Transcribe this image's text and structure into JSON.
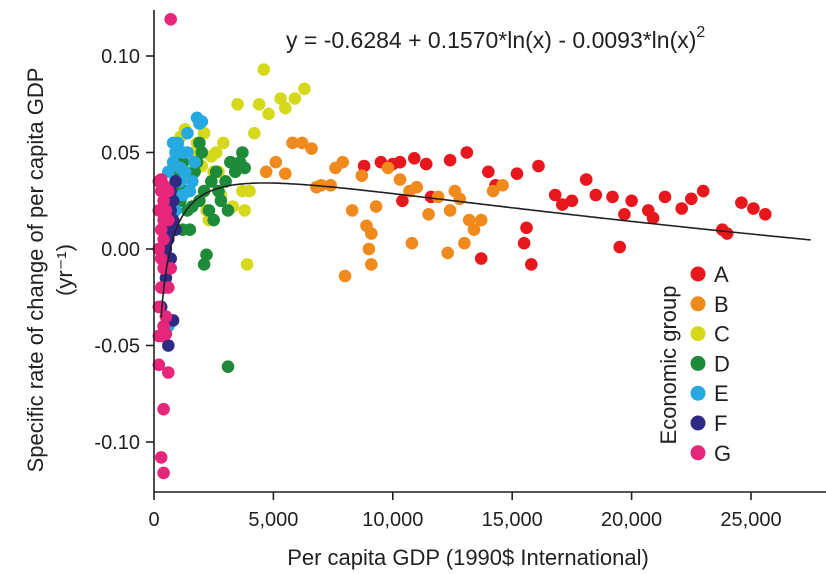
{
  "chart_data": {
    "type": "scatter",
    "xlabel": "Per capita GDP (1990$ International)",
    "ylabel_line1": "Specific rate of change of per capita GDP",
    "ylabel_line2": "(yr⁻¹)",
    "equation": "y = -0.6284 + 0.1570*ln(x) - 0.0093*ln(x)",
    "equation_sup": "2",
    "xlim": [
      0,
      27500
    ],
    "ylim": [
      -0.13,
      0.125
    ],
    "x_ticks": [
      0,
      5000,
      10000,
      15000,
      20000,
      25000
    ],
    "x_tick_labels": [
      "0",
      "5,000",
      "10,000",
      "15,000",
      "20,000",
      "25,000"
    ],
    "y_ticks": [
      0.1,
      0.05,
      0.0,
      -0.05,
      -0.1
    ],
    "y_tick_labels": [
      "0.10",
      "0.05",
      "0.00",
      "-0.05",
      "-0.10"
    ],
    "fit": {
      "a": -0.6284,
      "b": 0.157,
      "c": -0.0093
    },
    "legend_title": "Economic group",
    "series": [
      {
        "name": "A",
        "color": "#e8171d",
        "points": [
          [
            8800,
            0.043
          ],
          [
            9500,
            0.045
          ],
          [
            10000,
            0.044
          ],
          [
            10300,
            0.045
          ],
          [
            10900,
            0.047
          ],
          [
            11400,
            0.044
          ],
          [
            12400,
            0.046
          ],
          [
            13100,
            0.05
          ],
          [
            14000,
            0.04
          ],
          [
            15200,
            0.039
          ],
          [
            16100,
            0.043
          ],
          [
            16800,
            0.028
          ],
          [
            17500,
            0.025
          ],
          [
            18100,
            0.036
          ],
          [
            18500,
            0.028
          ],
          [
            19200,
            0.027
          ],
          [
            19700,
            0.018
          ],
          [
            20000,
            0.025
          ],
          [
            20700,
            0.02
          ],
          [
            21400,
            0.027
          ],
          [
            22100,
            0.021
          ],
          [
            22500,
            0.026
          ],
          [
            23000,
            0.03
          ],
          [
            23800,
            0.01
          ],
          [
            24600,
            0.024
          ],
          [
            25100,
            0.021
          ],
          [
            25600,
            0.018
          ],
          [
            15600,
            0.011
          ],
          [
            15800,
            -0.008
          ],
          [
            15500,
            0.003
          ],
          [
            13700,
            -0.005
          ],
          [
            19500,
            0.001
          ],
          [
            10400,
            0.025
          ],
          [
            11600,
            0.027
          ],
          [
            24000,
            0.008
          ],
          [
            17100,
            0.023
          ],
          [
            14300,
            0.033
          ],
          [
            20900,
            0.016
          ]
        ]
      },
      {
        "name": "B",
        "color": "#f08a1d",
        "points": [
          [
            4700,
            0.04
          ],
          [
            5100,
            0.045
          ],
          [
            5500,
            0.039
          ],
          [
            5800,
            0.055
          ],
          [
            6200,
            0.055
          ],
          [
            6600,
            0.052
          ],
          [
            7000,
            0.033
          ],
          [
            7400,
            0.033
          ],
          [
            7900,
            0.045
          ],
          [
            8300,
            0.02
          ],
          [
            8700,
            0.038
          ],
          [
            8900,
            0.012
          ],
          [
            9100,
            0.008
          ],
          [
            9100,
            -0.008
          ],
          [
            9300,
            0.022
          ],
          [
            9800,
            0.042
          ],
          [
            10300,
            0.036
          ],
          [
            10700,
            0.03
          ],
          [
            11000,
            0.032
          ],
          [
            11500,
            0.018
          ],
          [
            11900,
            0.027
          ],
          [
            12400,
            0.02
          ],
          [
            12600,
            0.03
          ],
          [
            12800,
            0.026
          ],
          [
            13200,
            0.015
          ],
          [
            13400,
            0.01
          ],
          [
            13000,
            0.003
          ],
          [
            12300,
            -0.002
          ],
          [
            13700,
            0.015
          ],
          [
            14200,
            0.03
          ],
          [
            14600,
            0.033
          ],
          [
            8000,
            -0.014
          ],
          [
            9000,
            0.0
          ],
          [
            10800,
            0.003
          ],
          [
            6800,
            0.032
          ],
          [
            7600,
            0.042
          ]
        ]
      },
      {
        "name": "C",
        "color": "#d6d81c",
        "points": [
          [
            800,
            0.03
          ],
          [
            1000,
            0.035
          ],
          [
            1200,
            0.04
          ],
          [
            1400,
            0.045
          ],
          [
            1500,
            0.038
          ],
          [
            1700,
            0.05
          ],
          [
            1800,
            0.055
          ],
          [
            2000,
            0.043
          ],
          [
            2100,
            0.03
          ],
          [
            2200,
            0.02
          ],
          [
            2300,
            0.015
          ],
          [
            2400,
            0.048
          ],
          [
            2500,
            0.04
          ],
          [
            2600,
            0.05
          ],
          [
            2800,
            0.028
          ],
          [
            2900,
            0.055
          ],
          [
            3000,
            0.035
          ],
          [
            3200,
            0.045
          ],
          [
            3300,
            0.022
          ],
          [
            3500,
            0.075
          ],
          [
            3700,
            0.03
          ],
          [
            3800,
            0.02
          ],
          [
            4000,
            0.03
          ],
          [
            4200,
            0.06
          ],
          [
            4400,
            0.075
          ],
          [
            4800,
            0.07
          ],
          [
            5300,
            0.078
          ],
          [
            5500,
            0.073
          ],
          [
            5900,
            0.078
          ],
          [
            6300,
            0.083
          ],
          [
            4600,
            0.093
          ],
          [
            3900,
            -0.008
          ],
          [
            1100,
            0.058
          ],
          [
            1300,
            0.062
          ],
          [
            2100,
            0.06
          ],
          [
            2700,
            0.04
          ]
        ]
      },
      {
        "name": "D",
        "color": "#1e8b3a",
        "points": [
          [
            900,
            0.03
          ],
          [
            1000,
            0.04
          ],
          [
            1100,
            0.025
          ],
          [
            1200,
            0.045
          ],
          [
            1300,
            0.03
          ],
          [
            1400,
            0.02
          ],
          [
            1500,
            0.01
          ],
          [
            1600,
            0.035
          ],
          [
            1700,
            0.04
          ],
          [
            1800,
            0.045
          ],
          [
            1900,
            0.025
          ],
          [
            2000,
            0.05
          ],
          [
            2100,
            0.03
          ],
          [
            2200,
            -0.003
          ],
          [
            2300,
            0.02
          ],
          [
            2400,
            0.035
          ],
          [
            2600,
            0.04
          ],
          [
            2700,
            0.03
          ],
          [
            2800,
            0.025
          ],
          [
            3000,
            0.035
          ],
          [
            3100,
            0.02
          ],
          [
            3200,
            0.045
          ],
          [
            3400,
            0.04
          ],
          [
            3600,
            0.045
          ],
          [
            3700,
            0.05
          ],
          [
            3800,
            0.042
          ],
          [
            2100,
            -0.008
          ],
          [
            3100,
            -0.061
          ],
          [
            1200,
            0.01
          ],
          [
            1900,
            0.055
          ],
          [
            2500,
            0.015
          ],
          [
            1600,
            0.022
          ]
        ]
      },
      {
        "name": "E",
        "color": "#25a9e0",
        "points": [
          [
            500,
            0.025
          ],
          [
            600,
            0.04
          ],
          [
            700,
            0.03
          ],
          [
            800,
            0.045
          ],
          [
            900,
            0.05
          ],
          [
            1000,
            0.055
          ],
          [
            1100,
            0.035
          ],
          [
            1200,
            0.028
          ],
          [
            1300,
            0.04
          ],
          [
            1400,
            0.05
          ],
          [
            1500,
            0.03
          ],
          [
            1600,
            0.035
          ],
          [
            1700,
            0.045
          ],
          [
            1800,
            0.068
          ],
          [
            1900,
            0.065
          ],
          [
            2000,
            0.066
          ],
          [
            700,
            0.01
          ],
          [
            900,
            0.02
          ],
          [
            1100,
            0.042
          ],
          [
            1400,
            0.06
          ],
          [
            600,
            -0.04
          ],
          [
            800,
            0.055
          ],
          [
            1200,
            0.05
          ]
        ]
      },
      {
        "name": "F",
        "color": "#2f2b85",
        "points": [
          [
            300,
            -0.03
          ],
          [
            400,
            -0.02
          ],
          [
            500,
            0.0
          ],
          [
            600,
            0.01
          ],
          [
            700,
            0.02
          ],
          [
            800,
            0.025
          ],
          [
            600,
            -0.05
          ],
          [
            700,
            0.03
          ],
          [
            500,
            0.03
          ],
          [
            800,
            0.015
          ],
          [
            900,
            0.035
          ],
          [
            700,
            -0.005
          ],
          [
            600,
            0.005
          ],
          [
            800,
            -0.037
          ],
          [
            500,
            -0.015
          ],
          [
            900,
            0.01
          ]
        ]
      },
      {
        "name": "G",
        "color": "#e5267a",
        "points": [
          [
            700,
            0.119
          ],
          [
            200,
            0.035
          ],
          [
            300,
            0.03
          ],
          [
            400,
            0.025
          ],
          [
            200,
            0.02
          ],
          [
            300,
            0.01
          ],
          [
            400,
            0.005
          ],
          [
            200,
            0.0
          ],
          [
            300,
            -0.005
          ],
          [
            400,
            -0.01
          ],
          [
            300,
            -0.02
          ],
          [
            200,
            -0.03
          ],
          [
            400,
            -0.04
          ],
          [
            300,
            -0.045
          ],
          [
            200,
            -0.06
          ],
          [
            500,
            -0.044
          ],
          [
            600,
            -0.064
          ],
          [
            400,
            -0.083
          ],
          [
            300,
            -0.108
          ],
          [
            400,
            -0.116
          ],
          [
            600,
            0.015
          ],
          [
            500,
            0.02
          ],
          [
            400,
            0.033
          ],
          [
            300,
            0.036
          ],
          [
            600,
            -0.02
          ],
          [
            700,
            -0.01
          ],
          [
            500,
            -0.035
          ],
          [
            200,
            -0.045
          ],
          [
            400,
            0.015
          ],
          [
            600,
            0.03
          ]
        ]
      }
    ]
  }
}
